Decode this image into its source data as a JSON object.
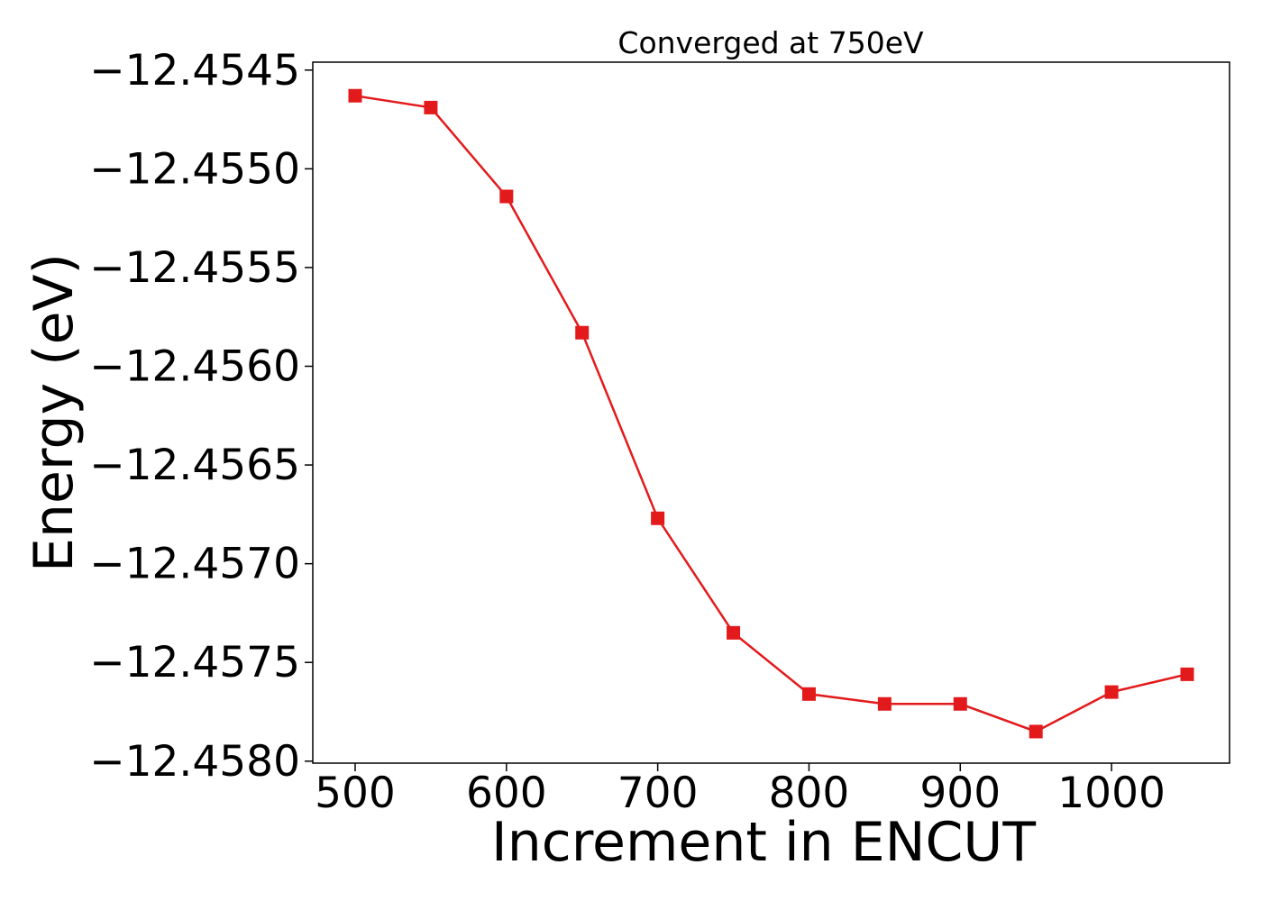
{
  "chart_data": {
    "type": "line",
    "title": "Converged at 750eV",
    "xlabel": "Increment in ENCUT",
    "ylabel": "Energy (eV)",
    "x": [
      500,
      550,
      600,
      650,
      700,
      750,
      800,
      850,
      900,
      950,
      1000,
      1050
    ],
    "series": [
      {
        "values": [
          -12.45463,
          -12.45469,
          -12.45514,
          -12.45583,
          -12.45677,
          -12.45735,
          -12.45766,
          -12.45771,
          -12.45771,
          -12.45785,
          -12.45765,
          -12.45756
        ],
        "color": "#e31a1c",
        "marker": "square"
      }
    ],
    "xticks": [
      500,
      600,
      700,
      800,
      900,
      1000
    ],
    "xtick_labels": [
      "500",
      "600",
      "700",
      "800",
      "900",
      "1000"
    ],
    "yticks": [
      -12.4545,
      -12.455,
      -12.4555,
      -12.456,
      -12.4565,
      -12.457,
      -12.4575,
      -12.458
    ],
    "ytick_labels": [
      "−12.4545",
      "−12.4550",
      "−12.4555",
      "−12.4560",
      "−12.4565",
      "−12.4570",
      "−12.4575",
      "−12.4580"
    ],
    "xlim": [
      472,
      1078
    ],
    "ylim": [
      -12.45801,
      -12.45446
    ],
    "grid": false
  }
}
